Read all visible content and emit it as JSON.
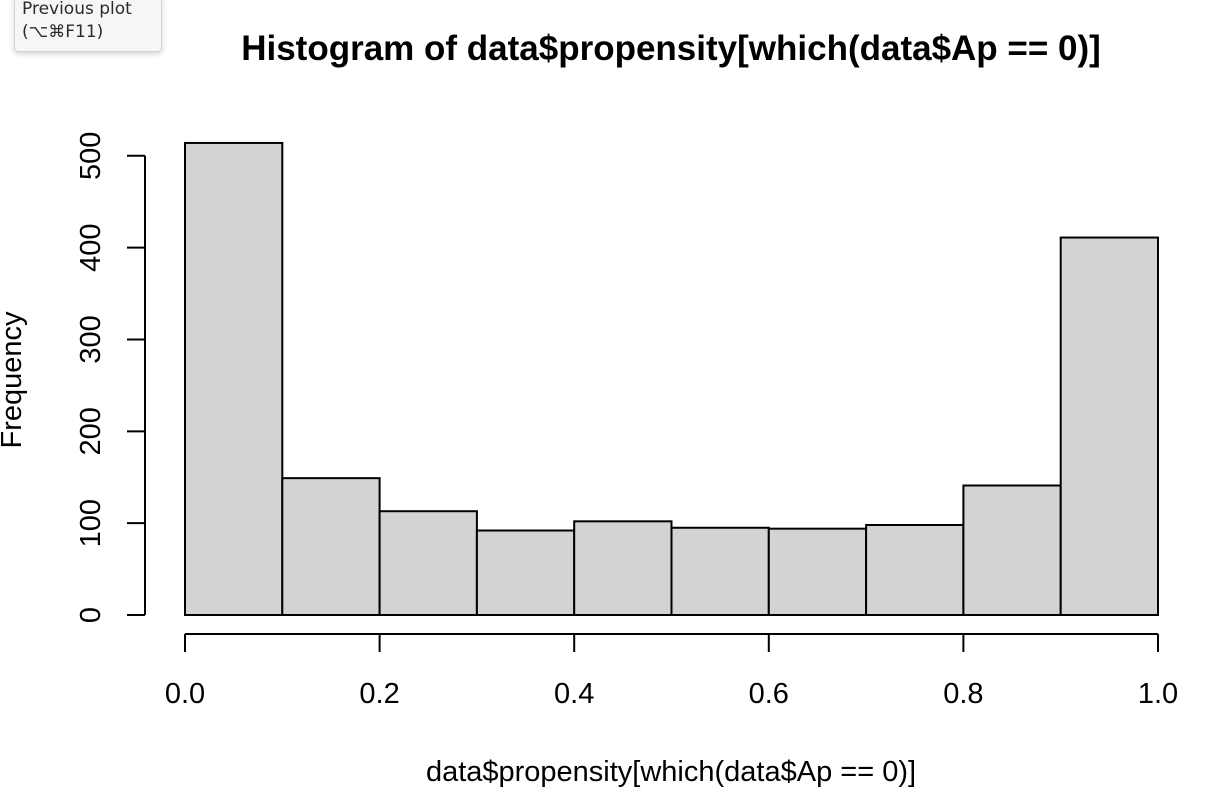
{
  "tooltip": {
    "line1": "Previous plot",
    "line2": "(⌥⌘F11)"
  },
  "chart_data": {
    "type": "bar",
    "title": "Histogram of data$propensity[which(data$Ap == 0)]",
    "xlabel": "data$propensity[which(data$Ap == 0)]",
    "ylabel": "Frequency",
    "bin_edges": [
      0.0,
      0.1,
      0.2,
      0.3,
      0.4,
      0.5,
      0.6,
      0.7,
      0.8,
      0.9,
      1.0
    ],
    "values": [
      514,
      149,
      113,
      92,
      102,
      95,
      94,
      98,
      141,
      411
    ],
    "xlim": [
      0,
      1
    ],
    "ylim": [
      0,
      514
    ],
    "xticks": [
      "0.0",
      "0.2",
      "0.4",
      "0.6",
      "0.8",
      "1.0"
    ],
    "yticks": [
      "0",
      "100",
      "200",
      "300",
      "400",
      "500"
    ],
    "grid": false,
    "colors": {
      "bar_fill": "#d3d3d3",
      "bar_stroke": "#000000"
    }
  }
}
